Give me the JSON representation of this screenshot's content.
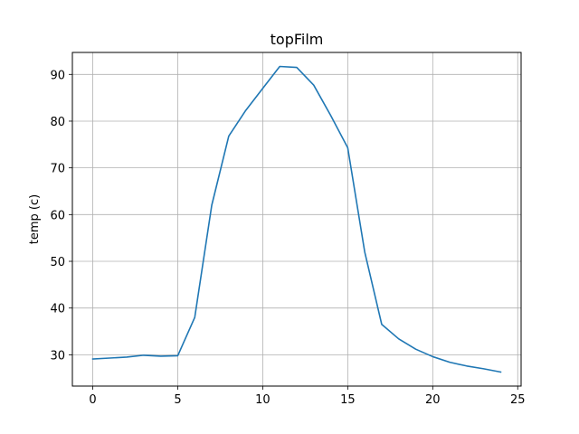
{
  "chart_data": {
    "type": "line",
    "title": "topFilm",
    "xlabel": "",
    "ylabel": "temp (c)",
    "xlim": [
      -1.2,
      25.2
    ],
    "ylim": [
      23.3,
      94.7
    ],
    "xticks": [
      0,
      5,
      10,
      15,
      20,
      25
    ],
    "yticks": [
      30,
      40,
      50,
      60,
      70,
      80,
      90
    ],
    "grid": true,
    "series": [
      {
        "name": "topFilm",
        "color": "#1f77b4",
        "x": [
          0,
          1,
          2,
          3,
          4,
          5,
          6,
          7,
          8,
          9,
          10,
          11,
          12,
          13,
          14,
          15,
          16,
          17,
          18,
          19,
          20,
          21,
          22,
          23,
          24
        ],
        "y": [
          29.1,
          29.3,
          29.5,
          29.9,
          29.7,
          29.8,
          38.0,
          62.0,
          76.8,
          82.3,
          87.0,
          91.7,
          91.5,
          87.7,
          81.2,
          74.3,
          52.0,
          36.5,
          33.4,
          31.2,
          29.6,
          28.4,
          27.6,
          27.0,
          26.3
        ]
      }
    ]
  }
}
